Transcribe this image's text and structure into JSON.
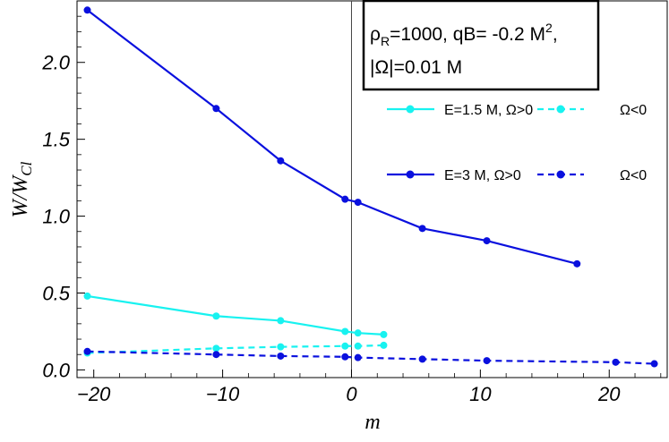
{
  "chart_data": {
    "type": "line",
    "xlabel": "m",
    "ylabel_main": "W/W",
    "ylabel_sub": "Cl",
    "xlim": [
      -21.3,
      24.5
    ],
    "ylim": [
      -0.05,
      2.4
    ],
    "x_ticks": [
      -20,
      -10,
      0,
      10,
      20
    ],
    "x_tick_labels": [
      "−20",
      "−10",
      "0",
      "10",
      "20"
    ],
    "y_ticks": [
      0.0,
      0.5,
      1.0,
      1.5,
      2.0
    ],
    "y_tick_labels": [
      "0.0",
      "0.5",
      "1.0",
      "1.5",
      "2.0"
    ],
    "vertical_line_x": 0,
    "annotation": {
      "line1_rho": "ρ",
      "line1_rho_sub": "R",
      "line1_mid": "=1000, qB= -0.2 M",
      "line1_sup": "2",
      "line1_end": ",",
      "line2": "|Ω|=0.01 M"
    },
    "legend": {
      "cyan_solid": "E=1.5 M, Ω>0",
      "cyan_dashed": "Ω<0",
      "blue_solid": "E=3 M, Ω>0",
      "blue_dashed": "Ω<0"
    },
    "series": [
      {
        "name": "E=3 M, Ω>0",
        "color": "#0a10de",
        "dash": "solid",
        "x": [
          -20.5,
          -10.5,
          -5.5,
          -0.5,
          0.5,
          5.5,
          10.5,
          17.5
        ],
        "y": [
          2.34,
          1.7,
          1.36,
          1.11,
          1.09,
          0.92,
          0.84,
          0.69
        ]
      },
      {
        "name": "E=1.5 M, Ω>0",
        "color": "#18f2f0",
        "dash": "solid",
        "x": [
          -20.5,
          -10.5,
          -5.5,
          -0.5,
          0.5,
          2.5
        ],
        "y": [
          0.48,
          0.35,
          0.32,
          0.25,
          0.24,
          0.23
        ]
      },
      {
        "name": "E=1.5 M, Ω<0",
        "color": "#18f2f0",
        "dash": "dashed",
        "x": [
          -20.5,
          -10.5,
          -5.5,
          -0.5,
          0.5,
          2.5
        ],
        "y": [
          0.11,
          0.14,
          0.15,
          0.155,
          0.155,
          0.16
        ]
      },
      {
        "name": "E=3 M, Ω<0",
        "color": "#0a10de",
        "dash": "dashed",
        "x": [
          -20.5,
          -10.5,
          -5.5,
          -0.5,
          0.5,
          5.5,
          10.5,
          20.5,
          23.5
        ],
        "y": [
          0.12,
          0.1,
          0.09,
          0.085,
          0.08,
          0.07,
          0.06,
          0.05,
          0.04
        ]
      }
    ]
  }
}
